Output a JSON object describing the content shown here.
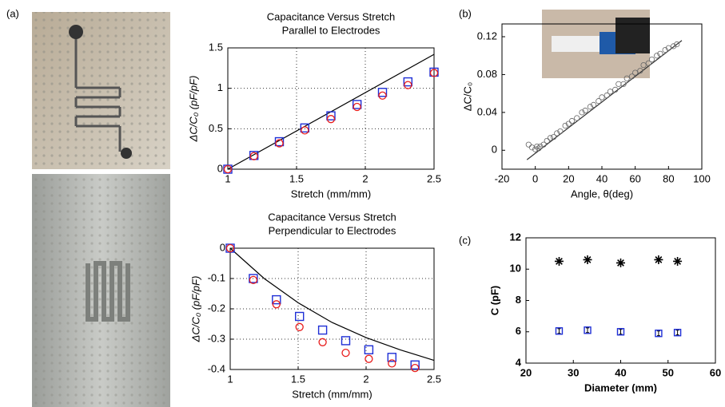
{
  "panel_labels": [
    "(a)",
    "(b)",
    "(c)"
  ],
  "chart_data": [
    {
      "type": "scatter",
      "title": [
        "Capacitance Versus Stretch",
        "Parallel to Electrodes"
      ],
      "xlabel": "Stretch (mm/mm)",
      "ylabel": "ΔC/C₀ (pF/pF)",
      "xlim": [
        1,
        2.5
      ],
      "xticks": [
        1,
        1.5,
        2,
        2.5
      ],
      "ylim": [
        0,
        1.5
      ],
      "yticks": [
        0,
        0.5,
        1,
        1.5
      ],
      "grid": true,
      "series": [
        {
          "marker": "line",
          "color": "#000000",
          "x": [
            1,
            2.5
          ],
          "values": [
            0,
            1.42
          ]
        },
        {
          "marker": "square",
          "color": "#1f2fd6",
          "x": [
            1,
            1.19,
            1.375,
            1.56,
            1.75,
            1.94,
            2.125,
            2.31,
            2.5
          ],
          "values": [
            0,
            0.17,
            0.34,
            0.51,
            0.66,
            0.8,
            0.95,
            1.08,
            1.2
          ]
        },
        {
          "marker": "circle",
          "color": "#e81c1c",
          "x": [
            1,
            1.19,
            1.375,
            1.56,
            1.75,
            1.94,
            2.125,
            2.31,
            2.5
          ],
          "values": [
            0,
            0.16,
            0.32,
            0.48,
            0.62,
            0.77,
            0.91,
            1.04,
            1.19
          ]
        }
      ]
    },
    {
      "type": "scatter",
      "title": [
        "Capacitance Versus Stretch",
        "Perpendicular to Electrodes"
      ],
      "xlabel": "Stretch (mm/mm)",
      "ylabel": "ΔC/C₀ (pF/pF)",
      "xlim": [
        1,
        2.5
      ],
      "xticks": [
        1,
        1.5,
        2,
        2.5
      ],
      "ylim": [
        -0.4,
        0
      ],
      "yticks": [
        0,
        -0.1,
        -0.2,
        -0.3,
        -0.4
      ],
      "grid": true,
      "series": [
        {
          "marker": "line",
          "color": "#000000",
          "x": [
            1,
            1.25,
            1.5,
            1.75,
            2,
            2.25,
            2.5
          ],
          "values": [
            0,
            -0.1,
            -0.18,
            -0.245,
            -0.295,
            -0.335,
            -0.37
          ]
        },
        {
          "marker": "square",
          "color": "#1f2fd6",
          "x": [
            1,
            1.17,
            1.34,
            1.51,
            1.68,
            1.85,
            2.02,
            2.19,
            2.36
          ],
          "values": [
            0,
            -0.1,
            -0.17,
            -0.225,
            -0.27,
            -0.305,
            -0.335,
            -0.36,
            -0.385
          ]
        },
        {
          "marker": "circle",
          "color": "#e81c1c",
          "x": [
            1,
            1.17,
            1.34,
            1.51,
            1.68,
            1.85,
            2.02,
            2.19,
            2.36
          ],
          "values": [
            0,
            -0.105,
            -0.185,
            -0.26,
            -0.31,
            -0.345,
            -0.365,
            -0.38,
            -0.395
          ]
        }
      ]
    },
    {
      "type": "scatter",
      "xlabel": "Angle, θ(deg)",
      "ylabel": "ΔC/C₀",
      "xlim": [
        -20,
        100
      ],
      "xticks": [
        -20,
        0,
        20,
        40,
        60,
        80,
        100
      ],
      "ylim": [
        -0.02,
        0.1335
      ],
      "yticks": [
        0,
        0.04,
        0.08,
        0.12
      ],
      "grid": false,
      "series": [
        {
          "marker": "line",
          "color": "#333333",
          "x": [
            -5,
            88
          ],
          "values": [
            -0.01,
            0.116
          ]
        },
        {
          "marker": "circle",
          "color": "#666666",
          "x": [
            -4,
            -2,
            0,
            1,
            2,
            3,
            5,
            7,
            9,
            11,
            13,
            15,
            18,
            20,
            22,
            25,
            28,
            30,
            33,
            35,
            38,
            40,
            43,
            45,
            48,
            50,
            53,
            55,
            58,
            60,
            63,
            65,
            68,
            70,
            73,
            75,
            78,
            80,
            83,
            85
          ],
          "values": [
            0.006,
            0.003,
            0.001,
            0.004,
            0.002,
            0.004,
            0.006,
            0.01,
            0.013,
            0.014,
            0.018,
            0.02,
            0.026,
            0.028,
            0.031,
            0.034,
            0.04,
            0.042,
            0.046,
            0.048,
            0.052,
            0.056,
            0.058,
            0.062,
            0.064,
            0.07,
            0.07,
            0.076,
            0.078,
            0.082,
            0.084,
            0.09,
            0.092,
            0.096,
            0.1,
            0.102,
            0.106,
            0.108,
            0.11,
            0.112
          ]
        }
      ]
    },
    {
      "type": "scatter",
      "xlabel": "Diameter (mm)",
      "ylabel": "C (pF)",
      "xlim": [
        20,
        60
      ],
      "xticks": [
        20,
        30,
        40,
        50,
        60
      ],
      "ylim": [
        4,
        12
      ],
      "yticks": [
        4,
        6,
        8,
        10,
        12
      ],
      "grid": false,
      "series": [
        {
          "marker": "asterisk",
          "color": "#000000",
          "x": [
            27,
            33,
            40,
            48,
            52
          ],
          "values": [
            10.5,
            10.6,
            10.4,
            10.6,
            10.5
          ]
        },
        {
          "marker": "square",
          "color": "#1f2fd6",
          "x": [
            27,
            33,
            40,
            48,
            52
          ],
          "values": [
            6.05,
            6.1,
            6.0,
            5.9,
            5.95
          ],
          "errors": [
            0.15,
            0.15,
            0.15,
            0.15,
            0.15
          ]
        }
      ]
    }
  ]
}
